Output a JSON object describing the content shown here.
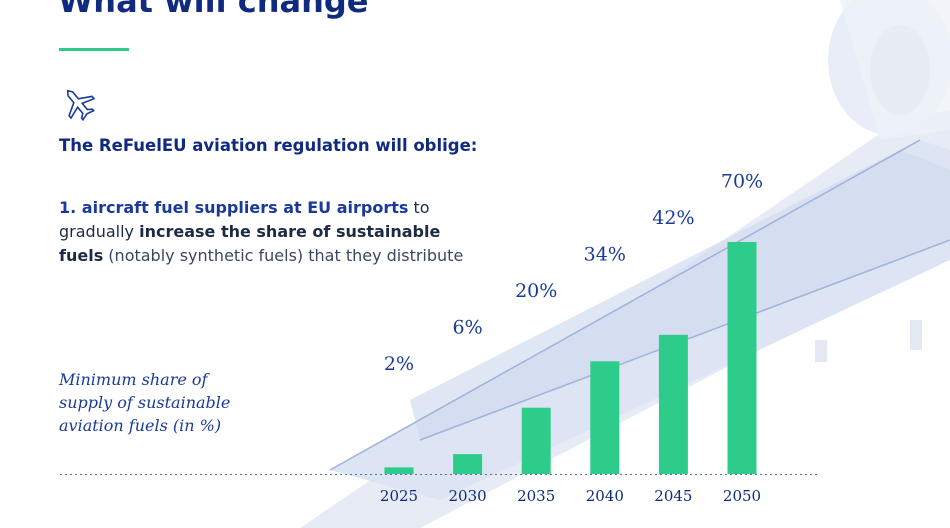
{
  "header": {
    "title": "What will change"
  },
  "intro": "The ReFuelEU aviation regulation will oblige:",
  "paragraph": [
    "1. aircraft fuel suppliers at EU airports",
    " to gradually ",
    "increase the share of sustainable fuels",
    " (notably synthetic fuels) that they distribute"
  ],
  "chart_data": {
    "type": "bar",
    "title": "Minimum share of supply of sustainable aviation fuels (in %)",
    "categories": [
      "2025",
      "2030",
      "2035",
      "2040",
      "2045",
      "2050"
    ],
    "values": [
      2,
      6,
      20,
      34,
      42,
      70
    ],
    "value_labels": [
      "2%",
      "6%",
      "20%",
      "34%",
      "42%",
      "70%"
    ],
    "color": "#2ecc8a"
  }
}
